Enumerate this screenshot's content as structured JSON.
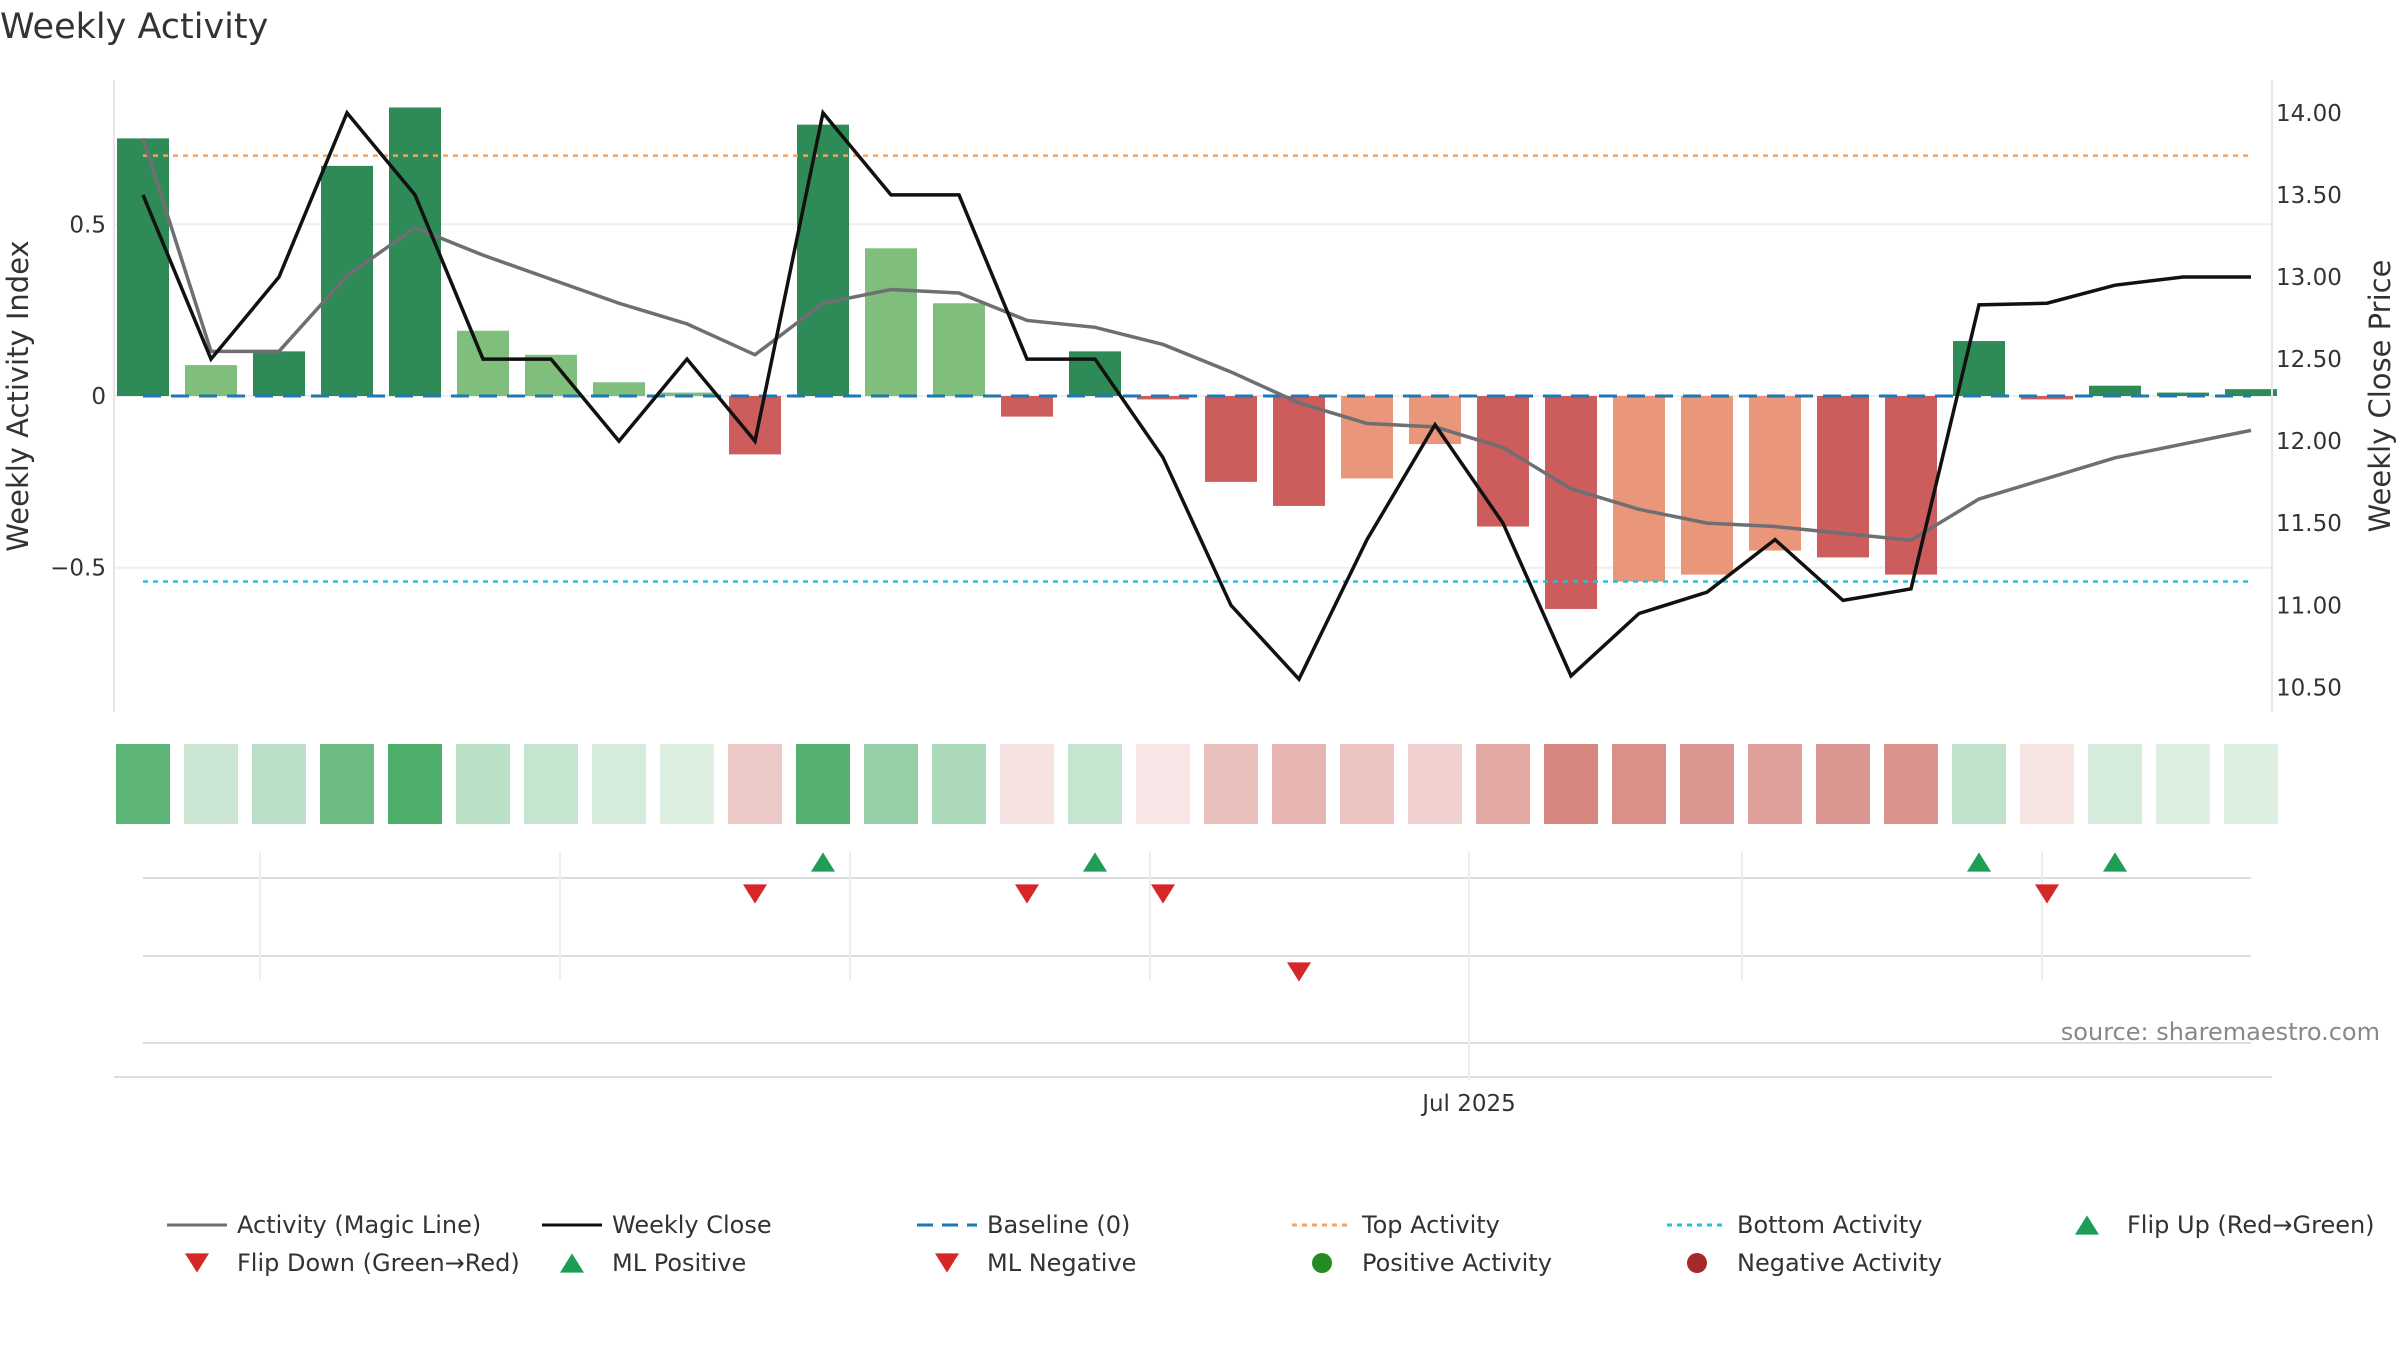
{
  "title": "Weekly Activity",
  "source": "source: sharemaestro.com",
  "colors": {
    "pos_dark": "#2e8b57",
    "pos_light": "#7fbf7b",
    "neg_dark": "#cd5c5c",
    "neg_light": "#e9967a",
    "magic_line": "#6e6e73",
    "close_line": "#111111",
    "baseline": "#1f77b4",
    "top_line": "#f4a460",
    "bottom_line": "#22c3d6",
    "marker_up": "#1e9e55",
    "marker_down": "#d62728",
    "positive_dot": "#228b22",
    "negative_dot": "#a52a2a"
  },
  "chart_data": {
    "type": "bar",
    "title": "Weekly Activity",
    "ylabel_left": "Weekly Activity Index",
    "ylabel_right": "Weekly Close Price",
    "ylim_left": [
      -0.92,
      0.92
    ],
    "ylim_right": [
      10.35,
      14.2
    ],
    "left_ticks": [
      {
        "v": 0.5,
        "label": "0.5"
      },
      {
        "v": 0,
        "label": "0"
      },
      {
        "v": -0.5,
        "label": "−0.5"
      }
    ],
    "right_ticks": [
      {
        "v": 14.0,
        "label": "14.00"
      },
      {
        "v": 13.5,
        "label": "13.50"
      },
      {
        "v": 13.0,
        "label": "13.00"
      },
      {
        "v": 12.5,
        "label": "12.50"
      },
      {
        "v": 12.0,
        "label": "12.00"
      },
      {
        "v": 11.5,
        "label": "11.50"
      },
      {
        "v": 11.0,
        "label": "11.00"
      },
      {
        "v": 10.5,
        "label": "10.50"
      }
    ],
    "x_tick_label": "Jul 2025",
    "x_tick_index": 19.5,
    "activity": [
      0.75,
      0.09,
      0.13,
      0.67,
      0.84,
      0.19,
      0.12,
      0.04,
      0.01,
      -0.17,
      0.79,
      0.43,
      0.27,
      -0.06,
      0.13,
      -0.01,
      -0.25,
      -0.32,
      -0.24,
      -0.14,
      -0.38,
      -0.62,
      -0.54,
      -0.52,
      -0.45,
      -0.47,
      -0.52,
      0.16,
      -0.01,
      0.03,
      0.01,
      0.02
    ],
    "bar_shade": [
      "dark",
      "light",
      "dark",
      "dark",
      "dark",
      "light",
      "light",
      "light",
      "light",
      "dark",
      "dark",
      "light",
      "light",
      "dark",
      "dark",
      "dark",
      "dark",
      "dark",
      "light",
      "light",
      "dark",
      "dark",
      "light",
      "light",
      "light",
      "dark",
      "dark",
      "dark",
      "dark",
      "dark",
      "dark",
      "dark"
    ],
    "magic_line": [
      0.75,
      0.13,
      0.13,
      0.35,
      0.49,
      0.41,
      0.34,
      0.27,
      0.21,
      0.12,
      0.27,
      0.31,
      0.3,
      0.22,
      0.2,
      0.15,
      0.07,
      -0.02,
      -0.08,
      -0.09,
      -0.15,
      -0.27,
      -0.33,
      -0.37,
      -0.38,
      -0.4,
      -0.42,
      -0.3,
      -0.24,
      -0.18,
      -0.14,
      -0.1
    ],
    "weekly_close": [
      13.5,
      12.5,
      13.0,
      14.0,
      13.5,
      12.5,
      12.5,
      12.0,
      12.5,
      12.0,
      14.0,
      13.5,
      13.5,
      12.5,
      12.5,
      11.9,
      11.0,
      10.55,
      11.4,
      12.1,
      11.5,
      10.57,
      10.95,
      11.08,
      11.4,
      11.03,
      11.1,
      12.83,
      12.84,
      12.95,
      13.0,
      13.0
    ],
    "heat_intensity": [
      0.78,
      0.25,
      0.32,
      0.7,
      0.85,
      0.33,
      0.28,
      0.2,
      0.17,
      0.28,
      0.82,
      0.5,
      0.4,
      0.15,
      0.28,
      0.13,
      0.33,
      0.38,
      0.31,
      0.24,
      0.45,
      0.64,
      0.59,
      0.55,
      0.5,
      0.55,
      0.57,
      0.3,
      0.14,
      0.2,
      0.17,
      0.17
    ],
    "top_activity": 0.7,
    "bottom_activity": -0.54,
    "baseline": 0,
    "flip_up_weeks": [
      10,
      14,
      27,
      29
    ],
    "flip_down_weeks": [
      9,
      13,
      15,
      28
    ],
    "ml_negative_weeks": [
      17
    ],
    "legend": [
      {
        "label": "Activity (Magic Line)",
        "symbol": "line-gray"
      },
      {
        "label": "Weekly Close",
        "symbol": "line-black"
      },
      {
        "label": "Baseline (0)",
        "symbol": "dash-blue"
      },
      {
        "label": "Top Activity",
        "symbol": "dot-orange"
      },
      {
        "label": "Bottom Activity",
        "symbol": "dot-cyan"
      },
      {
        "label": "Flip Up (Red→Green)",
        "symbol": "tri-up"
      },
      {
        "label": "Flip Down (Green→Red)",
        "symbol": "tri-down"
      },
      {
        "label": "ML Positive",
        "symbol": "tri-up"
      },
      {
        "label": "ML Negative",
        "symbol": "tri-down"
      },
      {
        "label": "Positive Activity",
        "symbol": "dot-green"
      },
      {
        "label": "Negative Activity",
        "symbol": "dot-red"
      }
    ]
  }
}
